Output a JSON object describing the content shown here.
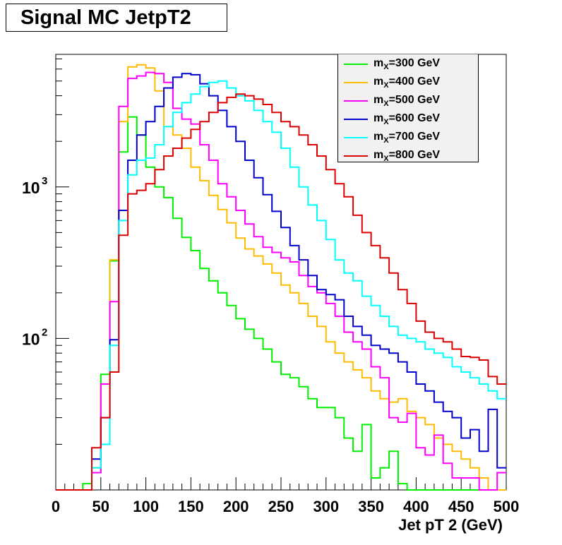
{
  "chart_data": {
    "type": "line",
    "title": "Signal MC JetpT2",
    "xlabel": "Jet pT 2 (GeV)",
    "ylabel": "",
    "xlim": [
      0,
      500
    ],
    "ylim": [
      10,
      7500
    ],
    "yscale": "log",
    "bin_width": 10,
    "x": [
      0,
      10,
      20,
      30,
      40,
      50,
      60,
      70,
      80,
      90,
      100,
      110,
      120,
      130,
      140,
      150,
      160,
      170,
      180,
      190,
      200,
      210,
      220,
      230,
      240,
      250,
      260,
      270,
      280,
      290,
      300,
      310,
      320,
      330,
      340,
      350,
      360,
      370,
      380,
      390,
      400,
      410,
      420,
      430,
      440,
      450,
      460,
      470,
      480,
      490
    ],
    "x_ticks": [
      0,
      50,
      100,
      150,
      200,
      250,
      300,
      350,
      400,
      450,
      500
    ],
    "y_tick_labels": [
      {
        "base": "10",
        "exp": "3",
        "value": 1000
      },
      {
        "base": "10",
        "exp": "2",
        "value": 100
      }
    ],
    "legend_position": "top-right",
    "series": [
      {
        "name_main": "m",
        "name_sub": "X",
        "name_rest": "=300 GeV",
        "color": "#00ee00",
        "values": [
          10,
          10,
          10,
          11,
          13,
          58,
          325,
          1700,
          2900,
          2200,
          1350,
          1000,
          850,
          620,
          465,
          380,
          290,
          240,
          200,
          165,
          135,
          115,
          100,
          85,
          70,
          58,
          55,
          48,
          40,
          35,
          35,
          30,
          22,
          18,
          27,
          12,
          14,
          18,
          11,
          10,
          10,
          10,
          10,
          10,
          10,
          10,
          10,
          10,
          10,
          10
        ]
      },
      {
        "name_main": "m",
        "name_sub": "X",
        "name_rest": "=400 GeV",
        "color": "#ffbb00",
        "values": [
          10,
          10,
          10,
          10,
          14,
          50,
          330,
          2700,
          6200,
          6400,
          6100,
          4300,
          2500,
          2200,
          1800,
          1350,
          1100,
          880,
          710,
          580,
          460,
          390,
          350,
          310,
          270,
          225,
          200,
          170,
          140,
          120,
          95,
          80,
          70,
          62,
          55,
          45,
          40,
          38,
          40,
          33,
          30,
          27,
          22,
          20,
          18,
          16,
          14,
          12,
          10,
          10
        ]
      },
      {
        "name_main": "m",
        "name_sub": "X",
        "name_rest": "=500 GeV",
        "color": "#ff00ff",
        "values": [
          10,
          10,
          10,
          10,
          13,
          50,
          175,
          3400,
          5200,
          5400,
          5700,
          5600,
          4900,
          3300,
          2800,
          2600,
          1900,
          1500,
          1050,
          860,
          700,
          570,
          470,
          400,
          370,
          340,
          320,
          260,
          220,
          200,
          170,
          140,
          110,
          95,
          85,
          65,
          55,
          30,
          28,
          32,
          19,
          17,
          23,
          15,
          12,
          12,
          12,
          10,
          10,
          13
        ]
      },
      {
        "name_main": "m",
        "name_sub": "X",
        "name_rest": "=600 GeV",
        "color": "#0000cc",
        "values": [
          10,
          10,
          10,
          10,
          16,
          30,
          98,
          700,
          1500,
          2200,
          2700,
          3400,
          4500,
          5300,
          5600,
          5500,
          4800,
          4000,
          3200,
          2500,
          2000,
          1500,
          1150,
          890,
          690,
          540,
          410,
          330,
          260,
          210,
          195,
          180,
          140,
          120,
          105,
          90,
          85,
          80,
          70,
          60,
          50,
          45,
          38,
          33,
          30,
          22,
          25,
          18,
          34,
          14
        ]
      },
      {
        "name_main": "m",
        "name_sub": "X",
        "name_rest": "=700 GeV",
        "color": "#00ffff",
        "values": [
          10,
          10,
          10,
          10,
          14,
          20,
          90,
          600,
          1200,
          1500,
          1550,
          1900,
          2500,
          3100,
          3600,
          4100,
          4600,
          4900,
          5000,
          4500,
          4000,
          3700,
          3200,
          2700,
          2300,
          1800,
          1350,
          1000,
          760,
          600,
          450,
          330,
          270,
          240,
          190,
          165,
          140,
          120,
          105,
          100,
          95,
          85,
          80,
          75,
          65,
          60,
          55,
          50,
          45,
          40
        ]
      },
      {
        "name_main": "m",
        "name_sub": "X",
        "name_rest": "=800 GeV",
        "color": "#dd0000",
        "values": [
          10,
          10,
          10,
          10,
          19,
          30,
          60,
          480,
          900,
          950,
          1050,
          1300,
          1600,
          1800,
          2100,
          2400,
          2700,
          3100,
          3600,
          3900,
          4100,
          4000,
          3800,
          3500,
          3100,
          2700,
          2500,
          2200,
          1900,
          1600,
          1300,
          1050,
          860,
          650,
          500,
          410,
          340,
          270,
          210,
          170,
          130,
          110,
          100,
          95,
          85,
          76,
          75,
          72,
          56,
          50
        ]
      }
    ]
  }
}
